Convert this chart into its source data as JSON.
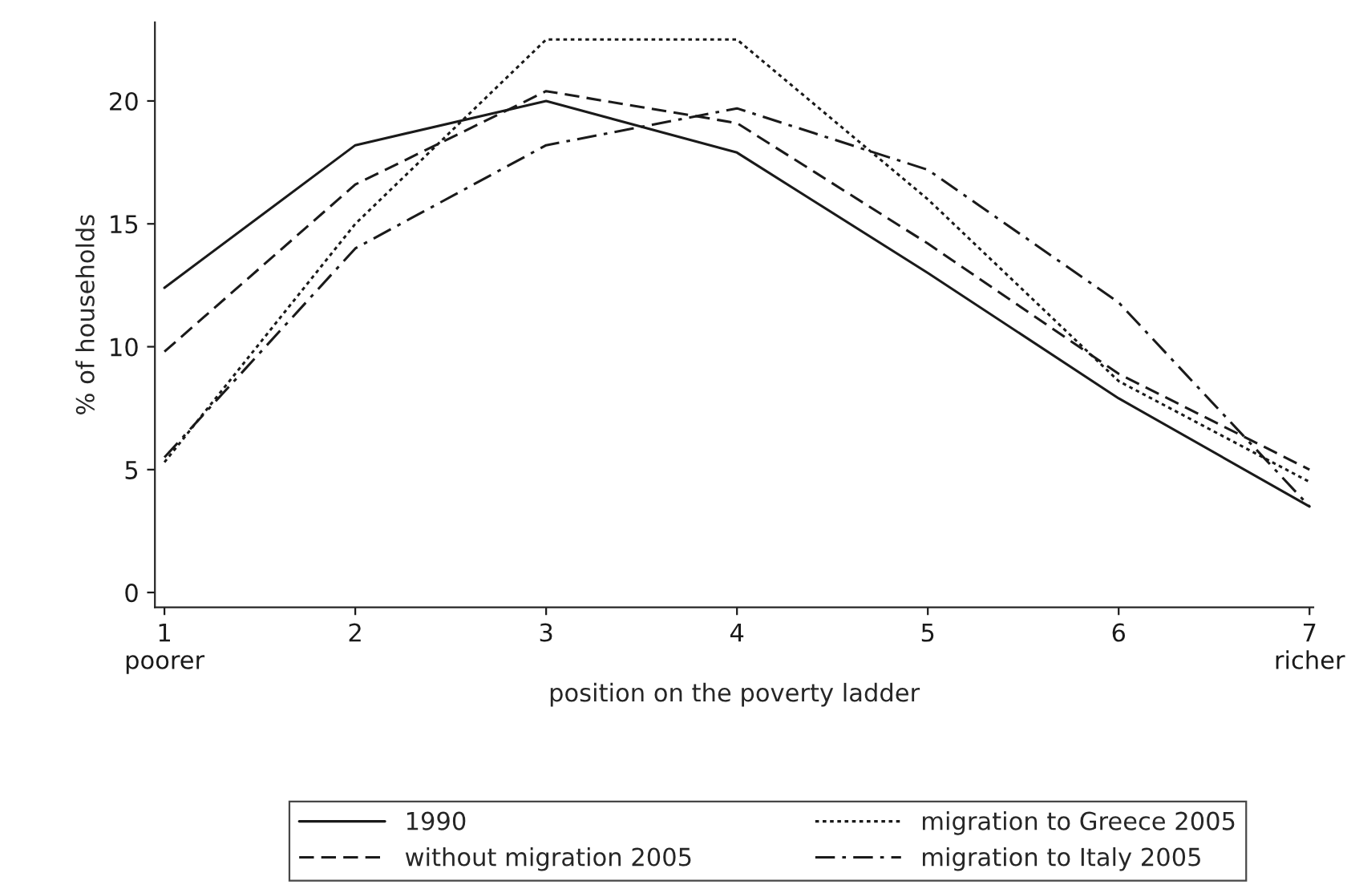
{
  "chart_data": {
    "type": "line",
    "xlabel": "position on the poverty ladder",
    "ylabel": "% of households",
    "x": [
      1,
      2,
      3,
      4,
      5,
      6,
      7
    ],
    "series": [
      {
        "name": "1990",
        "color": "#1a1a1a",
        "line_style": "solid",
        "values": [
          12.4,
          18.2,
          20.0,
          17.9,
          13.0,
          7.9,
          3.5
        ]
      },
      {
        "name": "without migration 2005",
        "color": "#1a1a1a",
        "line_style": "dashed",
        "values": [
          9.8,
          16.6,
          20.4,
          19.1,
          14.2,
          8.9,
          5.0
        ]
      },
      {
        "name": "migration to Greece 2005",
        "color": "#1a1a1a",
        "line_style": "dotted",
        "values": [
          5.3,
          15.0,
          22.5,
          22.5,
          16.0,
          8.6,
          4.5
        ]
      },
      {
        "name": "migration to Italy 2005",
        "color": "#1a1a1a",
        "line_style": "dashdot",
        "values": [
          5.5,
          14.0,
          18.2,
          19.7,
          17.2,
          11.8,
          3.5
        ]
      }
    ],
    "xlim": [
      0.95,
      7.02
    ],
    "xticks": [
      {
        "value": 1,
        "label": "1\npoorer"
      },
      2,
      3,
      4,
      5,
      6,
      {
        "value": 7,
        "label": "7\nricher"
      }
    ],
    "ylim": [
      -0.6,
      23.2
    ],
    "yticks": [
      0,
      5,
      10,
      15,
      20
    ],
    "grid": false,
    "legend": "bottom",
    "marker": "none"
  }
}
